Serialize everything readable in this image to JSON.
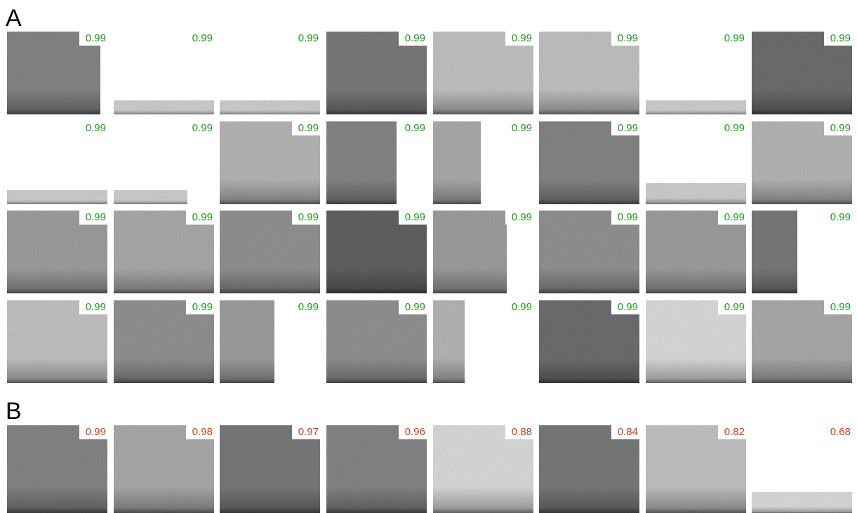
{
  "panels": [
    {
      "label": "A",
      "scores": [
        [
          "0.99",
          "0.99",
          "0.99",
          "0.99",
          "0.99",
          "0.99",
          "0.99",
          "0.99"
        ],
        [
          "0.99",
          "0.99",
          "0.99",
          "0.99",
          "0.99",
          "0.99",
          "0.99",
          "0.99"
        ],
        [
          "0.99",
          "0.99",
          "0.99",
          "0.99",
          "0.99",
          "0.99",
          "0.99",
          "0.99"
        ],
        [
          "0.99",
          "0.99",
          "0.99",
          "0.99",
          "0.99",
          "0.99",
          "0.99",
          "0.99"
        ]
      ]
    },
    {
      "label": "B",
      "scores": [
        [
          "0.99",
          "0.98",
          "0.97",
          "0.96",
          "0.88",
          "0.84",
          "0.82",
          "0.68"
        ]
      ]
    }
  ]
}
